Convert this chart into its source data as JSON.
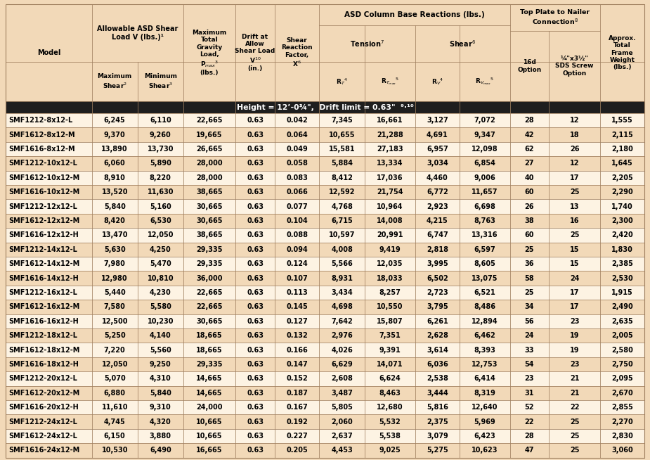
{
  "header_bg": "#f2d9b8",
  "row_bg_light": "#fdf3e3",
  "row_bg_alt": "#f2d9b8",
  "border_color": "#a08060",
  "col_widths": [
    1.32,
    0.7,
    0.7,
    0.8,
    0.6,
    0.68,
    0.7,
    0.77,
    0.68,
    0.77,
    0.6,
    0.78,
    0.68
  ],
  "section_header": "Height = 12’-0¾\", Drift limit = 0.63\"  9,10",
  "rows": [
    [
      "SMF1212-8x12-L",
      "6,245",
      "6,110",
      "22,665",
      "0.63",
      "0.042",
      "7,345",
      "16,661",
      "3,127",
      "7,072",
      "28",
      "12",
      "1,555"
    ],
    [
      "SMF1612-8x12-M",
      "9,370",
      "9,260",
      "19,665",
      "0.63",
      "0.064",
      "10,655",
      "21,288",
      "4,691",
      "9,347",
      "42",
      "18",
      "2,115"
    ],
    [
      "SMF1616-8x12-M",
      "13,890",
      "13,730",
      "26,665",
      "0.63",
      "0.049",
      "15,581",
      "27,183",
      "6,957",
      "12,098",
      "62",
      "26",
      "2,180"
    ],
    [
      "SMF1212-10x12-L",
      "6,060",
      "5,890",
      "28,000",
      "0.63",
      "0.058",
      "5,884",
      "13,334",
      "3,034",
      "6,854",
      "27",
      "12",
      "1,645"
    ],
    [
      "SMF1612-10x12-M",
      "8,910",
      "8,220",
      "28,000",
      "0.63",
      "0.083",
      "8,412",
      "17,036",
      "4,460",
      "9,006",
      "40",
      "17",
      "2,205"
    ],
    [
      "SMF1616-10x12-M",
      "13,520",
      "11,630",
      "38,665",
      "0.63",
      "0.066",
      "12,592",
      "21,754",
      "6,772",
      "11,657",
      "60",
      "25",
      "2,290"
    ],
    [
      "SMF1212-12x12-L",
      "5,840",
      "5,160",
      "30,665",
      "0.63",
      "0.077",
      "4,768",
      "10,964",
      "2,923",
      "6,698",
      "26",
      "13",
      "1,740"
    ],
    [
      "SMF1612-12x12-M",
      "8,420",
      "6,530",
      "30,665",
      "0.63",
      "0.104",
      "6,715",
      "14,008",
      "4,215",
      "8,763",
      "38",
      "16",
      "2,300"
    ],
    [
      "SMF1616-12x12-H",
      "13,470",
      "12,050",
      "38,665",
      "0.63",
      "0.088",
      "10,597",
      "20,991",
      "6,747",
      "13,316",
      "60",
      "25",
      "2,420"
    ],
    [
      "SMF1212-14x12-L",
      "5,630",
      "4,250",
      "29,335",
      "0.63",
      "0.094",
      "4,008",
      "9,419",
      "2,818",
      "6,597",
      "25",
      "15",
      "1,830"
    ],
    [
      "SMF1612-14x12-M",
      "7,980",
      "5,470",
      "29,335",
      "0.63",
      "0.124",
      "5,566",
      "12,035",
      "3,995",
      "8,605",
      "36",
      "15",
      "2,385"
    ],
    [
      "SMF1616-14x12-H",
      "12,980",
      "10,810",
      "36,000",
      "0.63",
      "0.107",
      "8,931",
      "18,033",
      "6,502",
      "13,075",
      "58",
      "24",
      "2,530"
    ],
    [
      "SMF1212-16x12-L",
      "5,440",
      "4,230",
      "22,665",
      "0.63",
      "0.113",
      "3,434",
      "8,257",
      "2,723",
      "6,521",
      "25",
      "17",
      "1,915"
    ],
    [
      "SMF1612-16x12-M",
      "7,580",
      "5,580",
      "22,665",
      "0.63",
      "0.145",
      "4,698",
      "10,550",
      "3,795",
      "8,486",
      "34",
      "17",
      "2,490"
    ],
    [
      "SMF1616-16x12-H",
      "12,500",
      "10,230",
      "30,665",
      "0.63",
      "0.127",
      "7,642",
      "15,807",
      "6,261",
      "12,894",
      "56",
      "23",
      "2,635"
    ],
    [
      "SMF1212-18x12-L",
      "5,250",
      "4,140",
      "18,665",
      "0.63",
      "0.132",
      "2,976",
      "7,351",
      "2,628",
      "6,462",
      "24",
      "19",
      "2,005"
    ],
    [
      "SMF1612-18x12-M",
      "7,220",
      "5,560",
      "18,665",
      "0.63",
      "0.166",
      "4,026",
      "9,391",
      "3,614",
      "8,393",
      "33",
      "19",
      "2,580"
    ],
    [
      "SMF1616-18x12-H",
      "12,050",
      "9,250",
      "29,335",
      "0.63",
      "0.147",
      "6,629",
      "14,071",
      "6,036",
      "12,753",
      "54",
      "23",
      "2,750"
    ],
    [
      "SMF1212-20x12-L",
      "5,070",
      "4,310",
      "14,665",
      "0.63",
      "0.152",
      "2,608",
      "6,624",
      "2,538",
      "6,414",
      "23",
      "21",
      "2,095"
    ],
    [
      "SMF1612-20x12-M",
      "6,880",
      "5,840",
      "14,665",
      "0.63",
      "0.187",
      "3,487",
      "8,463",
      "3,444",
      "8,319",
      "31",
      "21",
      "2,670"
    ],
    [
      "SMF1616-20x12-H",
      "11,610",
      "9,310",
      "24,000",
      "0.63",
      "0.167",
      "5,805",
      "12,680",
      "5,816",
      "12,640",
      "52",
      "22",
      "2,855"
    ],
    [
      "SMF1212-24x12-L",
      "4,745",
      "4,320",
      "10,665",
      "0.63",
      "0.192",
      "2,060",
      "5,532",
      "2,375",
      "5,969",
      "22",
      "25",
      "2,270"
    ],
    [
      "SMF1612-24x12-L",
      "6,150",
      "3,880",
      "10,665",
      "0.63",
      "0.227",
      "2,637",
      "5,538",
      "3,079",
      "6,423",
      "28",
      "25",
      "2,830"
    ],
    [
      "SMF1616-24x12-M",
      "10,530",
      "6,490",
      "16,665",
      "0.63",
      "0.205",
      "4,453",
      "9,025",
      "5,275",
      "10,623",
      "47",
      "25",
      "3,060"
    ]
  ]
}
